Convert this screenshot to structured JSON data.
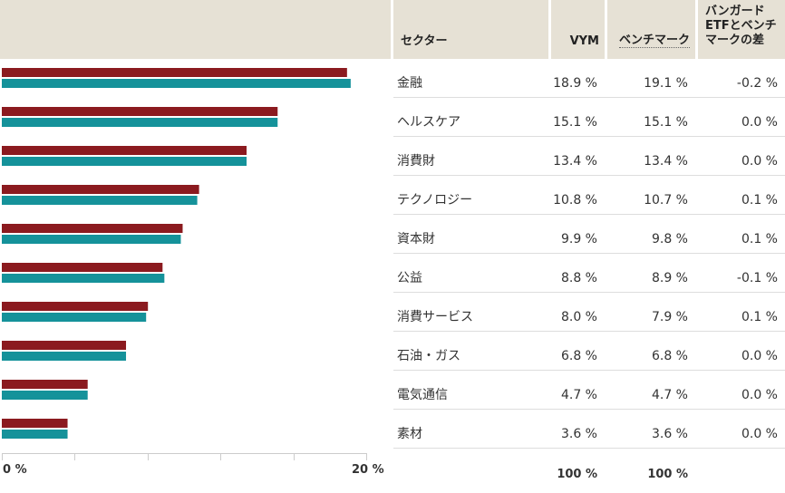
{
  "colors": {
    "vym": "#8b1a1f",
    "benchmark": "#15929a",
    "header_bg": "#e6e1d5"
  },
  "header": {
    "sector": "セクター",
    "vym": "VYM",
    "benchmark": "ベンチマーク",
    "diff_line1": "バンガード",
    "diff_line2": "ETFとベンチ",
    "diff_line3": "マークの差"
  },
  "chart_data": {
    "type": "bar",
    "orientation": "horizontal",
    "categories": [
      "金融",
      "ヘルスケア",
      "消費財",
      "テクノロジー",
      "資本財",
      "公益",
      "消費サービス",
      "石油・ガス",
      "電気通信",
      "素材"
    ],
    "series": [
      {
        "name": "VYM",
        "values": [
          18.9,
          15.1,
          13.4,
          10.8,
          9.9,
          8.8,
          8.0,
          6.8,
          4.7,
          3.6
        ]
      },
      {
        "name": "ベンチマーク",
        "values": [
          19.1,
          15.1,
          13.4,
          10.7,
          9.8,
          8.9,
          7.9,
          6.8,
          4.7,
          3.6
        ]
      }
    ],
    "xlim": [
      0,
      20
    ],
    "axis_labels": [
      "0 %",
      "20 %"
    ]
  },
  "rows": [
    {
      "sector": "金融",
      "vym": "18.9 %",
      "benchmark": "19.1 %",
      "diff": "-0.2 %"
    },
    {
      "sector": "ヘルスケア",
      "vym": "15.1 %",
      "benchmark": "15.1 %",
      "diff": "0.0 %"
    },
    {
      "sector": "消費財",
      "vym": "13.4 %",
      "benchmark": "13.4 %",
      "diff": "0.0 %"
    },
    {
      "sector": "テクノロジー",
      "vym": "10.8 %",
      "benchmark": "10.7 %",
      "diff": "0.1 %"
    },
    {
      "sector": "資本財",
      "vym": "9.9 %",
      "benchmark": "9.8 %",
      "diff": "0.1 %"
    },
    {
      "sector": "公益",
      "vym": "8.8 %",
      "benchmark": "8.9 %",
      "diff": "-0.1 %"
    },
    {
      "sector": "消費サービス",
      "vym": "8.0 %",
      "benchmark": "7.9 %",
      "diff": "0.1 %"
    },
    {
      "sector": "石油・ガス",
      "vym": "6.8 %",
      "benchmark": "6.8 %",
      "diff": "0.0 %"
    },
    {
      "sector": "電気通信",
      "vym": "4.7 %",
      "benchmark": "4.7 %",
      "diff": "0.0 %"
    },
    {
      "sector": "素材",
      "vym": "3.6 %",
      "benchmark": "3.6 %",
      "diff": "0.0 %"
    }
  ],
  "totals": {
    "vym": "100 %",
    "benchmark": "100 %"
  }
}
